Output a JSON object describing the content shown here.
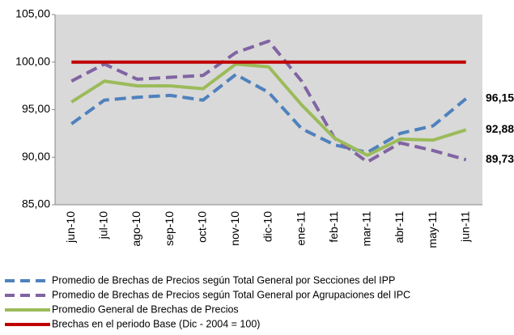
{
  "chart_data": {
    "type": "line",
    "categories": [
      "jun-10",
      "jul-10",
      "ago-10",
      "sep-10",
      "oct-10",
      "nov-10",
      "dic-10",
      "ene-11",
      "feb-11",
      "mar-11",
      "abr-11",
      "may-11",
      "jun-11"
    ],
    "series": [
      {
        "name": "Promedio de Brechas de Precios según Total  General por Secciones del IPP",
        "color": "#4f81bd",
        "dashed": true,
        "values": [
          93.5,
          96.0,
          96.3,
          96.5,
          96.0,
          98.7,
          96.8,
          93.0,
          91.3,
          90.5,
          92.5,
          93.3,
          96.15
        ],
        "value_labels": [
          null,
          null,
          null,
          null,
          null,
          null,
          null,
          null,
          null,
          null,
          null,
          null,
          "96,15"
        ]
      },
      {
        "name": "Promedio de Brechas de Precios según Total  General por Agrupaciones del IPC",
        "color": "#8064a2",
        "dashed": true,
        "values": [
          98.0,
          99.8,
          98.2,
          98.4,
          98.6,
          101.0,
          102.2,
          98.0,
          92.0,
          89.5,
          91.5,
          90.7,
          89.73
        ],
        "value_labels": [
          null,
          null,
          null,
          null,
          null,
          null,
          null,
          null,
          null,
          null,
          null,
          null,
          "89,73"
        ]
      },
      {
        "name": "Promedio General de Brechas de Precios",
        "color": "#9bbb59",
        "dashed": false,
        "values": [
          95.8,
          98.0,
          97.5,
          97.5,
          97.2,
          99.8,
          99.5,
          95.5,
          92.0,
          90.2,
          91.9,
          91.8,
          92.88
        ],
        "value_labels": [
          null,
          null,
          null,
          null,
          null,
          null,
          null,
          null,
          null,
          null,
          null,
          null,
          "92,88"
        ]
      },
      {
        "name": "Brechas en el periodo Base (Dic - 2004 = 100)",
        "color": "#c00000",
        "dashed": false,
        "values": [
          100,
          100,
          100,
          100,
          100,
          100,
          100,
          100,
          100,
          100,
          100,
          100,
          100
        ]
      }
    ],
    "ylim": [
      85,
      105
    ],
    "yticks": [
      {
        "value": 85,
        "label": "85,00"
      },
      {
        "value": 90,
        "label": "90,00"
      },
      {
        "value": 95,
        "label": "95,00"
      },
      {
        "value": 100,
        "label": "100,00"
      },
      {
        "value": 105,
        "label": "105,00"
      }
    ],
    "grid": false,
    "plot_background": "#d9d9d9"
  }
}
